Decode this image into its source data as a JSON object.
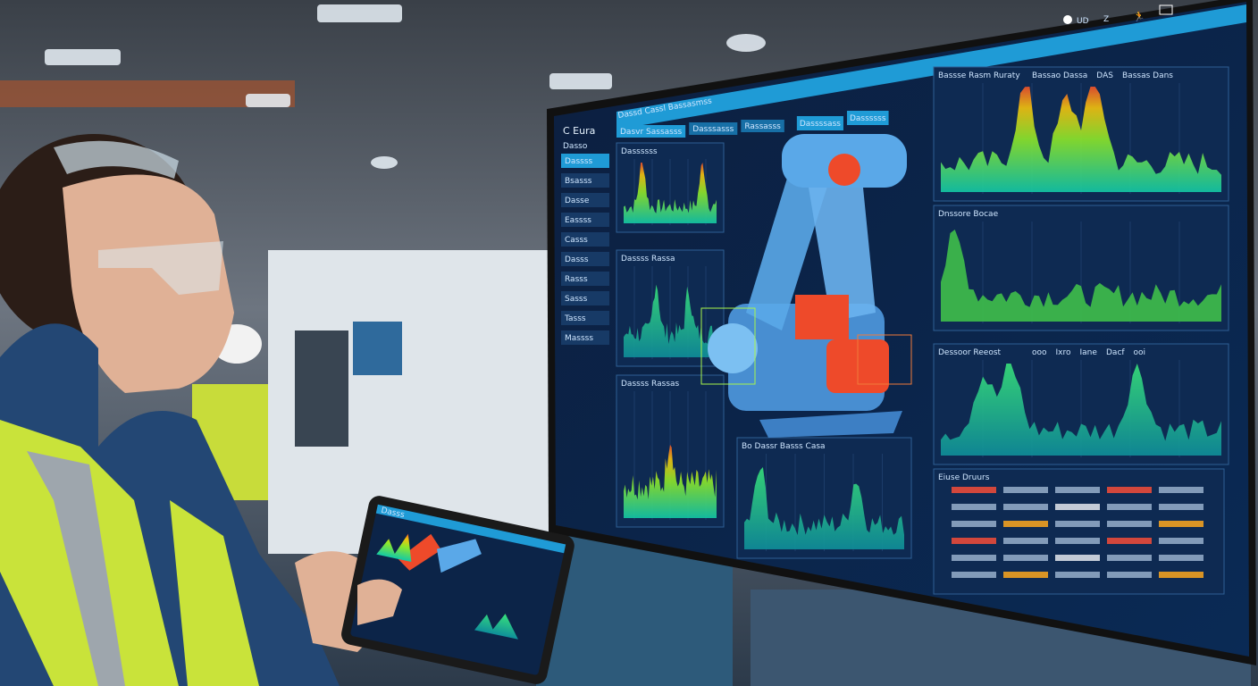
{
  "scene": {
    "description_colors": {
      "screen_bg": "#0d2347",
      "accent": "#1fa3e0",
      "vest": "#c9e33a",
      "robot": "#5aa8e8",
      "robot_accent": "#ee4a2a"
    }
  },
  "monitor": {
    "app_title": "C Eura",
    "header_title": "Dassd Cassl Bassasmss",
    "tabs": [
      {
        "label": "Dasvr Sassasss"
      },
      {
        "label": "Dasssasss"
      },
      {
        "label": "Rassasss"
      }
    ],
    "buttons": [
      {
        "label": "Dassssass"
      },
      {
        "label": "Dassssss"
      }
    ],
    "sidebar": {
      "heading": "Dasso",
      "items": [
        {
          "label": "Dassss"
        },
        {
          "label": "Bsasss"
        },
        {
          "label": "Dasse"
        },
        {
          "label": "Eassss"
        },
        {
          "label": "Casss"
        },
        {
          "label": "Dasss"
        },
        {
          "label": "Rasss"
        },
        {
          "label": "Sasss"
        },
        {
          "label": "Tasss"
        },
        {
          "label": "Massss"
        }
      ]
    },
    "top_icons": [
      "user-icon",
      "settings-icon",
      "run-icon",
      "window-icon"
    ],
    "top_icon_text": [
      "UD",
      "Z"
    ],
    "panels": {
      "left_top": {
        "title": "Dassssss"
      },
      "left_mid": {
        "title": "Dassss Rassa"
      },
      "left_bottom": {
        "title": "Dassss Rassas"
      },
      "center_bottom": {
        "title": "Bo Dassr Basss Casa"
      },
      "right_top": {
        "title": "Bassse Rasm Ruraty",
        "legend": [
          "Bassao Dassa",
          "DAS",
          "Bassas Dans"
        ]
      },
      "right_mid": {
        "title": "Dnssore Bocae"
      },
      "right_lower": {
        "title": "Dessoor Reeost",
        "legend": [
          "ooo",
          "Ixro",
          "Iane",
          "Dacf",
          "ooi"
        ]
      },
      "table": {
        "title": "Eiuse Druurs"
      }
    }
  },
  "tablet": {
    "title": "Dasss"
  }
}
